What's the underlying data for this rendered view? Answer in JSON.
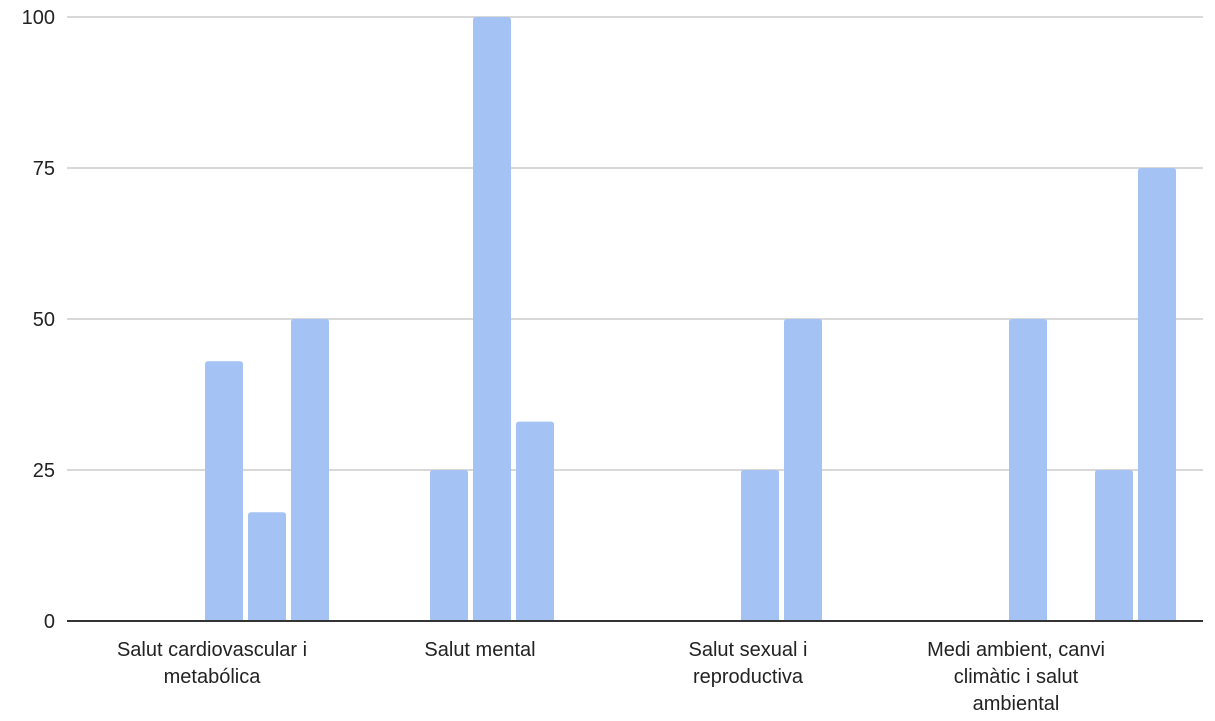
{
  "chart_data": {
    "type": "bar",
    "categories": [
      [
        "Salut cardiovascular i",
        "metabólica"
      ],
      [
        "Salut mental"
      ],
      [
        "Salut sexual i",
        "reproductiva"
      ],
      [
        "Medi ambient, canvi",
        "climàtic i salut",
        "ambiental"
      ]
    ],
    "series": [
      {
        "values": [
          0,
          25,
          0,
          0
        ]
      },
      {
        "values": [
          43,
          100,
          25,
          50
        ]
      },
      {
        "values": [
          18,
          33,
          50,
          0
        ]
      },
      {
        "values": [
          50,
          0,
          0,
          25
        ]
      },
      {
        "values": [
          0,
          0,
          0,
          75
        ]
      }
    ],
    "y_ticks": [
      "0",
      "25",
      "50",
      "75",
      "100"
    ],
    "ylim": [
      0,
      100
    ],
    "title": "",
    "xlabel": "",
    "ylabel": "",
    "grid": true,
    "legend": "none",
    "bar_color": "#a4c2f4"
  }
}
